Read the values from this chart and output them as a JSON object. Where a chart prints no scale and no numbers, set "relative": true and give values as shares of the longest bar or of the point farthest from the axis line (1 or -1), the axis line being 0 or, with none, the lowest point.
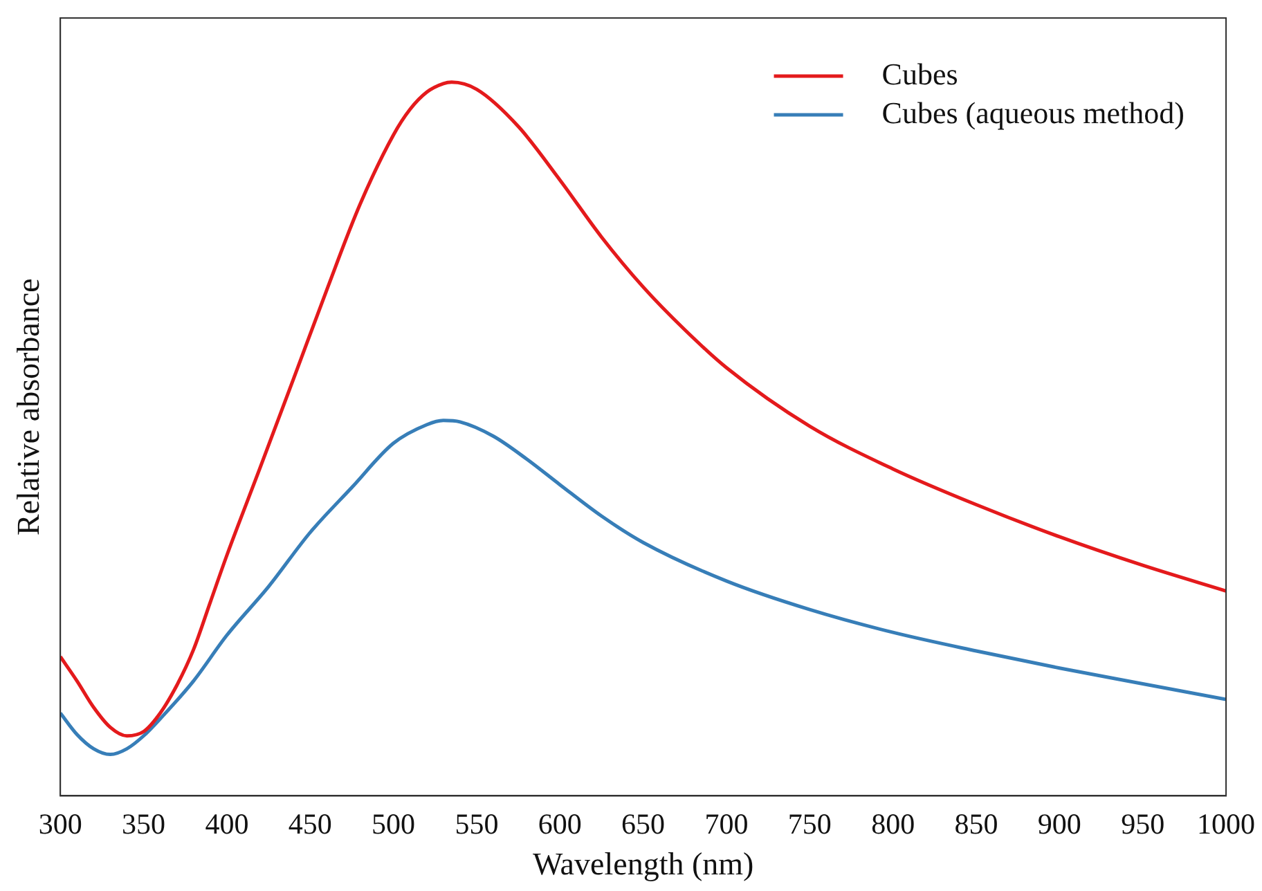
{
  "chart_data": {
    "type": "line",
    "xlabel": "Wavelength (nm)",
    "ylabel": "Relative absorbance",
    "relative": true,
    "xlim": [
      300,
      1000
    ],
    "xticks": [
      300,
      350,
      400,
      450,
      500,
      550,
      600,
      650,
      700,
      750,
      800,
      850,
      900,
      950,
      1000
    ],
    "grid": false,
    "legend": "top right",
    "marker": "none",
    "line_style": "solid",
    "series": [
      {
        "name": "Cubes",
        "color": "#e41a1c",
        "x": [
          300,
          310,
          320,
          330,
          340,
          350,
          360,
          370,
          380,
          390,
          400,
          420,
          440,
          460,
          480,
          500,
          510,
          520,
          530,
          535,
          550,
          575,
          600,
          625,
          650,
          675,
          700,
          750,
          800,
          850,
          900,
          950,
          1000
        ],
        "values": [
          0.195,
          0.161,
          0.124,
          0.096,
          0.084,
          0.09,
          0.116,
          0.155,
          0.205,
          0.271,
          0.337,
          0.46,
          0.584,
          0.709,
          0.829,
          0.926,
          0.962,
          0.986,
          0.998,
          1,
          0.99,
          0.938,
          0.863,
          0.783,
          0.713,
          0.653,
          0.6,
          0.518,
          0.458,
          0.408,
          0.363,
          0.323,
          0.287
        ]
      },
      {
        "name": "Cubes (aqueous method)",
        "color": "#377eb8",
        "x": [
          300,
          310,
          320,
          330,
          340,
          350,
          360,
          380,
          400,
          425,
          450,
          475,
          500,
          520,
          530,
          540,
          560,
          580,
          600,
          625,
          650,
          700,
          750,
          800,
          850,
          900,
          950,
          1000
        ],
        "values": [
          0.116,
          0.086,
          0.066,
          0.058,
          0.066,
          0.084,
          0.108,
          0.161,
          0.225,
          0.293,
          0.369,
          0.432,
          0.494,
          0.52,
          0.526,
          0.524,
          0.504,
          0.472,
          0.436,
          0.392,
          0.355,
          0.301,
          0.261,
          0.229,
          0.203,
          0.179,
          0.157,
          0.135
        ]
      }
    ]
  }
}
